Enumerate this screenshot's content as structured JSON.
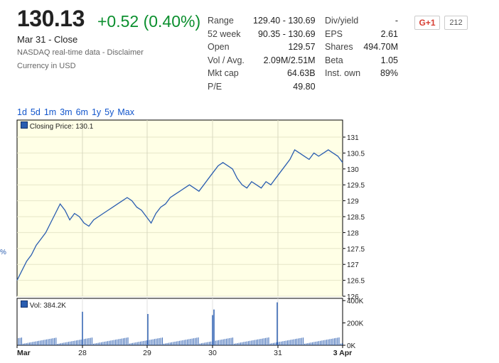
{
  "quote": {
    "price": "130.13",
    "change": "+0.52 (0.40%)",
    "close_date": "Mar 31 - Close",
    "realtime": "NASDAQ real-time data",
    "realtime_sep": " - ",
    "disclaimer": "Disclaimer",
    "currency": "Currency in USD"
  },
  "stats_left": [
    {
      "label": "Range",
      "value": "129.40 - 130.69"
    },
    {
      "label": "52 week",
      "value": "90.35 - 130.69"
    },
    {
      "label": "Open",
      "value": "129.57"
    },
    {
      "label": "Vol / Avg.",
      "value": "2.09M/2.51M"
    },
    {
      "label": "Mkt cap",
      "value": "64.63B"
    },
    {
      "label": "P/E",
      "value": "49.80"
    }
  ],
  "stats_right": [
    {
      "label": "Div/yield",
      "value": "-"
    },
    {
      "label": "EPS",
      "value": "2.61"
    },
    {
      "label": "Shares",
      "value": "494.70M"
    },
    {
      "label": "Beta",
      "value": "1.05"
    },
    {
      "label": "Inst. own",
      "value": "89%"
    }
  ],
  "gplus": {
    "label": "G+1",
    "count": "212"
  },
  "ranges": [
    "1d",
    "5d",
    "1m",
    "3m",
    "6m",
    "1y",
    "5y",
    "Max"
  ],
  "side_mark": "%",
  "colors": {
    "price_line": "#2a5db0",
    "positive": "#0b8f2e",
    "link": "#15c",
    "plot_bg": "#ffffe6"
  },
  "chart_data": [
    {
      "type": "line",
      "legend": "Closing Price: 130.1",
      "y_ticks": [
        "131",
        "130.5",
        "130",
        "129.5",
        "129",
        "128.5",
        "128",
        "127.5",
        "127",
        "126.5",
        "126"
      ],
      "ylim": [
        126,
        131
      ],
      "x_ticks": [
        "Mar",
        "28",
        "29",
        "30",
        "31",
        "3 Apr"
      ],
      "series": [
        {
          "values": [
            126.5,
            126.8,
            127.1,
            127.3,
            127.6,
            127.8,
            128.0,
            128.3,
            128.6,
            128.9,
            128.7,
            128.4,
            128.6,
            128.5,
            128.3,
            128.2,
            128.4,
            128.5,
            128.6,
            128.7,
            128.8,
            128.9,
            129.0,
            129.1,
            129.0,
            128.8,
            128.7,
            128.5,
            128.3,
            128.6,
            128.8,
            128.9,
            129.1,
            129.2,
            129.3,
            129.4,
            129.5,
            129.4,
            129.3,
            129.5,
            129.7,
            129.9,
            130.1,
            130.2,
            130.1,
            130.0,
            129.7,
            129.5,
            129.4,
            129.6,
            129.5,
            129.4,
            129.6,
            129.5,
            129.7,
            129.9,
            130.1,
            130.3,
            130.6,
            130.5,
            130.4,
            130.3,
            130.5,
            130.4,
            130.5,
            130.6,
            130.5,
            130.4,
            130.2
          ]
        }
      ]
    },
    {
      "type": "bar",
      "legend": "Vol: 384.2K",
      "y_ticks": [
        "400K",
        "200K",
        "0K"
      ],
      "ylim": [
        0,
        420000
      ],
      "spikes": [
        {
          "day": "Mar 27 close",
          "value": 300000
        },
        {
          "day": "Mar 30 open",
          "value": 280000
        },
        {
          "day": "Mar 30 close",
          "value": 270000
        },
        {
          "day": "Mar 31 open",
          "value": 320000
        },
        {
          "day": "Mar 31 close",
          "value": 384200
        }
      ]
    }
  ]
}
